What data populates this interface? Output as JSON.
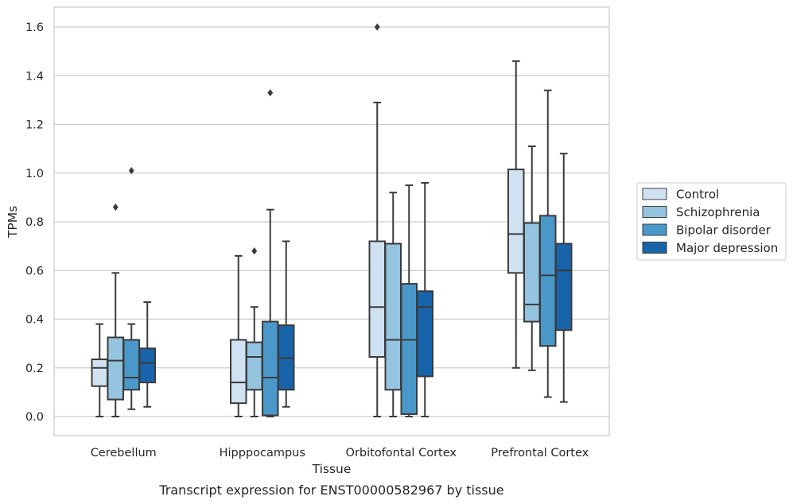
{
  "caption": "Transcript expression for ENST00000582967 by tissue",
  "chart_data": {
    "type": "boxplot",
    "xlabel": "Tissue",
    "ylabel": "TPMs",
    "ylim": [
      -0.08,
      1.68
    ],
    "yticks": [
      0.0,
      0.2,
      0.4,
      0.6,
      0.8,
      1.0,
      1.2,
      1.4,
      1.6
    ],
    "ytick_labels": [
      "0.0",
      "0.2",
      "0.4",
      "0.6",
      "0.8",
      "1.0",
      "1.2",
      "1.4",
      "1.6"
    ],
    "grid": "horizontal",
    "legend_position": "right",
    "categories": [
      "Cerebellum",
      "Hipppocampus",
      "Orbitofontal Cortex",
      "Prefrontal Cortex"
    ],
    "series": [
      {
        "name": "Control",
        "color": "#d0e1f2",
        "boxes": [
          {
            "whislo": 0.0,
            "q1": 0.125,
            "med": 0.2,
            "q3": 0.235,
            "whishi": 0.38,
            "fliers": []
          },
          {
            "whislo": 0.0,
            "q1": 0.055,
            "med": 0.14,
            "q3": 0.315,
            "whishi": 0.66,
            "fliers": []
          },
          {
            "whislo": 0.0,
            "q1": 0.245,
            "med": 0.45,
            "q3": 0.72,
            "whishi": 1.29,
            "fliers": [
              1.6
            ]
          },
          {
            "whislo": 0.2,
            "q1": 0.59,
            "med": 0.75,
            "q3": 1.015,
            "whishi": 1.46,
            "fliers": []
          }
        ]
      },
      {
        "name": "Schizophrenia",
        "color": "#94c4df",
        "boxes": [
          {
            "whislo": 0.0,
            "q1": 0.07,
            "med": 0.23,
            "q3": 0.325,
            "whishi": 0.59,
            "fliers": [
              0.86
            ]
          },
          {
            "whislo": 0.0,
            "q1": 0.11,
            "med": 0.245,
            "q3": 0.305,
            "whishi": 0.45,
            "fliers": [
              0.68
            ]
          },
          {
            "whislo": 0.0,
            "q1": 0.11,
            "med": 0.315,
            "q3": 0.71,
            "whishi": 0.92,
            "fliers": []
          },
          {
            "whislo": 0.19,
            "q1": 0.39,
            "med": 0.46,
            "q3": 0.795,
            "whishi": 1.11,
            "fliers": []
          }
        ]
      },
      {
        "name": "Bipolar disorder",
        "color": "#4a98c9",
        "boxes": [
          {
            "whislo": 0.03,
            "q1": 0.11,
            "med": 0.16,
            "q3": 0.315,
            "whishi": 0.38,
            "fliers": [
              1.01
            ]
          },
          {
            "whislo": 0.0,
            "q1": 0.005,
            "med": 0.16,
            "q3": 0.39,
            "whishi": 0.85,
            "fliers": [
              1.33
            ]
          },
          {
            "whislo": 0.0,
            "q1": 0.01,
            "med": 0.315,
            "q3": 0.545,
            "whishi": 0.95,
            "fliers": []
          },
          {
            "whislo": 0.08,
            "q1": 0.29,
            "med": 0.58,
            "q3": 0.825,
            "whishi": 1.34,
            "fliers": []
          }
        ]
      },
      {
        "name": "Major depression",
        "color": "#1764ab",
        "boxes": [
          {
            "whislo": 0.04,
            "q1": 0.14,
            "med": 0.22,
            "q3": 0.28,
            "whishi": 0.47,
            "fliers": []
          },
          {
            "whislo": 0.04,
            "q1": 0.11,
            "med": 0.24,
            "q3": 0.375,
            "whishi": 0.72,
            "fliers": []
          },
          {
            "whislo": 0.0,
            "q1": 0.165,
            "med": 0.45,
            "q3": 0.515,
            "whishi": 0.96,
            "fliers": []
          },
          {
            "whislo": 0.06,
            "q1": 0.355,
            "med": 0.6,
            "q3": 0.71,
            "whishi": 1.08,
            "fliers": []
          }
        ]
      }
    ]
  }
}
